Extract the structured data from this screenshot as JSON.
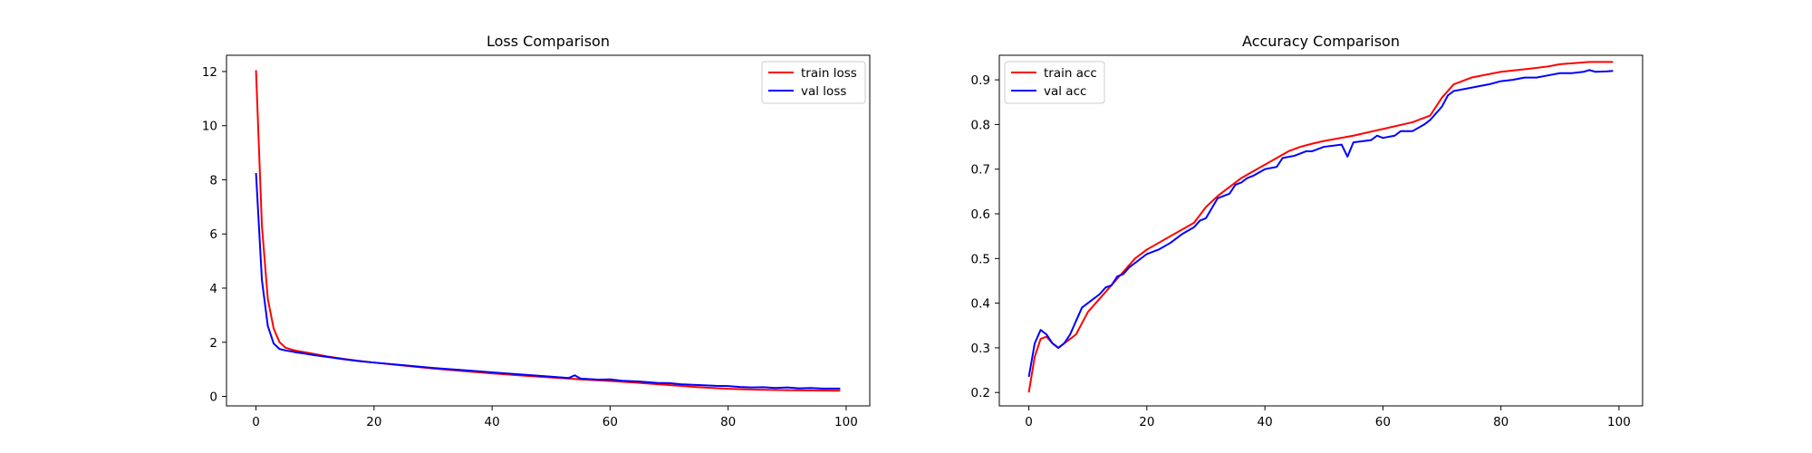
{
  "chart_data": [
    {
      "type": "line",
      "title": "Loss Comparison",
      "xlabel": "",
      "ylabel": "",
      "xlim": [
        -5,
        104
      ],
      "ylim": [
        -0.35,
        12.6
      ],
      "xticks": [
        0,
        20,
        40,
        60,
        80,
        100
      ],
      "yticks": [
        0,
        2,
        4,
        6,
        8,
        10,
        12
      ],
      "grid": false,
      "legend_position": "upper-right",
      "series": [
        {
          "name": "train loss",
          "color": "#ff0000",
          "points": [
            [
              0,
              12.05
            ],
            [
              1,
              6.3
            ],
            [
              2,
              3.6
            ],
            [
              3,
              2.5
            ],
            [
              4,
              2.0
            ],
            [
              5,
              1.8
            ],
            [
              6,
              1.73
            ],
            [
              7,
              1.68
            ],
            [
              8,
              1.64
            ],
            [
              10,
              1.56
            ],
            [
              12,
              1.48
            ],
            [
              15,
              1.38
            ],
            [
              18,
              1.3
            ],
            [
              20,
              1.25
            ],
            [
              25,
              1.14
            ],
            [
              30,
              1.03
            ],
            [
              35,
              0.94
            ],
            [
              40,
              0.85
            ],
            [
              45,
              0.77
            ],
            [
              50,
              0.7
            ],
            [
              53,
              0.66
            ],
            [
              55,
              0.63
            ],
            [
              60,
              0.57
            ],
            [
              65,
              0.5
            ],
            [
              70,
              0.42
            ],
            [
              75,
              0.34
            ],
            [
              80,
              0.28
            ],
            [
              85,
              0.25
            ],
            [
              90,
              0.23
            ],
            [
              95,
              0.22
            ],
            [
              99,
              0.21
            ]
          ]
        },
        {
          "name": "val loss",
          "color": "#0000ff",
          "points": [
            [
              0,
              8.25
            ],
            [
              1,
              4.3
            ],
            [
              2,
              2.6
            ],
            [
              3,
              1.95
            ],
            [
              4,
              1.75
            ],
            [
              5,
              1.7
            ],
            [
              6,
              1.66
            ],
            [
              7,
              1.62
            ],
            [
              8,
              1.59
            ],
            [
              10,
              1.52
            ],
            [
              12,
              1.46
            ],
            [
              15,
              1.37
            ],
            [
              18,
              1.29
            ],
            [
              20,
              1.25
            ],
            [
              25,
              1.15
            ],
            [
              30,
              1.05
            ],
            [
              35,
              0.97
            ],
            [
              40,
              0.89
            ],
            [
              45,
              0.81
            ],
            [
              50,
              0.73
            ],
            [
              53,
              0.68
            ],
            [
              54,
              0.78
            ],
            [
              55,
              0.66
            ],
            [
              58,
              0.62
            ],
            [
              60,
              0.63
            ],
            [
              62,
              0.58
            ],
            [
              65,
              0.55
            ],
            [
              68,
              0.5
            ],
            [
              70,
              0.49
            ],
            [
              72,
              0.45
            ],
            [
              75,
              0.42
            ],
            [
              78,
              0.39
            ],
            [
              80,
              0.38
            ],
            [
              82,
              0.35
            ],
            [
              84,
              0.33
            ],
            [
              86,
              0.34
            ],
            [
              88,
              0.31
            ],
            [
              90,
              0.33
            ],
            [
              92,
              0.3
            ],
            [
              94,
              0.31
            ],
            [
              96,
              0.29
            ],
            [
              99,
              0.29
            ]
          ]
        }
      ]
    },
    {
      "type": "line",
      "title": "Accuracy Comparison",
      "xlabel": "",
      "ylabel": "",
      "xlim": [
        -5,
        104
      ],
      "ylim": [
        0.17,
        0.955
      ],
      "xticks": [
        0,
        20,
        40,
        60,
        80,
        100
      ],
      "yticks": [
        0.2,
        0.3,
        0.4,
        0.5,
        0.6,
        0.7,
        0.8,
        0.9
      ],
      "grid": false,
      "legend_position": "upper-left",
      "series": [
        {
          "name": "train acc",
          "color": "#ff0000",
          "points": [
            [
              0,
              0.2
            ],
            [
              1,
              0.28
            ],
            [
              2,
              0.32
            ],
            [
              3,
              0.325
            ],
            [
              4,
              0.31
            ],
            [
              5,
              0.3
            ],
            [
              6,
              0.31
            ],
            [
              7,
              0.32
            ],
            [
              8,
              0.33
            ],
            [
              10,
              0.38
            ],
            [
              12,
              0.41
            ],
            [
              14,
              0.44
            ],
            [
              16,
              0.47
            ],
            [
              18,
              0.5
            ],
            [
              20,
              0.52
            ],
            [
              22,
              0.535
            ],
            [
              24,
              0.55
            ],
            [
              26,
              0.565
            ],
            [
              28,
              0.58
            ],
            [
              30,
              0.615
            ],
            [
              32,
              0.64
            ],
            [
              34,
              0.66
            ],
            [
              36,
              0.68
            ],
            [
              38,
              0.695
            ],
            [
              40,
              0.71
            ],
            [
              42,
              0.725
            ],
            [
              44,
              0.74
            ],
            [
              46,
              0.75
            ],
            [
              48,
              0.757
            ],
            [
              50,
              0.763
            ],
            [
              55,
              0.775
            ],
            [
              60,
              0.79
            ],
            [
              65,
              0.805
            ],
            [
              68,
              0.82
            ],
            [
              70,
              0.86
            ],
            [
              72,
              0.89
            ],
            [
              75,
              0.905
            ],
            [
              80,
              0.918
            ],
            [
              85,
              0.925
            ],
            [
              88,
              0.93
            ],
            [
              90,
              0.935
            ],
            [
              95,
              0.94
            ],
            [
              99,
              0.94
            ]
          ]
        },
        {
          "name": "val acc",
          "color": "#0000ff",
          "points": [
            [
              0,
              0.235
            ],
            [
              1,
              0.31
            ],
            [
              2,
              0.34
            ],
            [
              3,
              0.33
            ],
            [
              4,
              0.31
            ],
            [
              5,
              0.3
            ],
            [
              6,
              0.31
            ],
            [
              7,
              0.33
            ],
            [
              8,
              0.36
            ],
            [
              9,
              0.39
            ],
            [
              10,
              0.4
            ],
            [
              12,
              0.42
            ],
            [
              13,
              0.435
            ],
            [
              14,
              0.44
            ],
            [
              15,
              0.46
            ],
            [
              16,
              0.465
            ],
            [
              17,
              0.48
            ],
            [
              18,
              0.49
            ],
            [
              20,
              0.51
            ],
            [
              22,
              0.52
            ],
            [
              24,
              0.535
            ],
            [
              26,
              0.555
            ],
            [
              28,
              0.57
            ],
            [
              29,
              0.585
            ],
            [
              30,
              0.59
            ],
            [
              32,
              0.635
            ],
            [
              34,
              0.645
            ],
            [
              35,
              0.665
            ],
            [
              36,
              0.67
            ],
            [
              37,
              0.68
            ],
            [
              38,
              0.685
            ],
            [
              40,
              0.7
            ],
            [
              42,
              0.705
            ],
            [
              43,
              0.725
            ],
            [
              45,
              0.73
            ],
            [
              47,
              0.74
            ],
            [
              48,
              0.74
            ],
            [
              50,
              0.75
            ],
            [
              53,
              0.755
            ],
            [
              54,
              0.728
            ],
            [
              55,
              0.76
            ],
            [
              58,
              0.765
            ],
            [
              59,
              0.775
            ],
            [
              60,
              0.77
            ],
            [
              62,
              0.775
            ],
            [
              63,
              0.785
            ],
            [
              65,
              0.785
            ],
            [
              67,
              0.8
            ],
            [
              68,
              0.81
            ],
            [
              70,
              0.84
            ],
            [
              71,
              0.865
            ],
            [
              72,
              0.875
            ],
            [
              74,
              0.88
            ],
            [
              76,
              0.885
            ],
            [
              78,
              0.89
            ],
            [
              80,
              0.897
            ],
            [
              82,
              0.9
            ],
            [
              84,
              0.905
            ],
            [
              86,
              0.905
            ],
            [
              88,
              0.91
            ],
            [
              90,
              0.915
            ],
            [
              92,
              0.915
            ],
            [
              94,
              0.918
            ],
            [
              95,
              0.922
            ],
            [
              96,
              0.918
            ],
            [
              98,
              0.919
            ],
            [
              99,
              0.92
            ]
          ]
        }
      ]
    }
  ]
}
